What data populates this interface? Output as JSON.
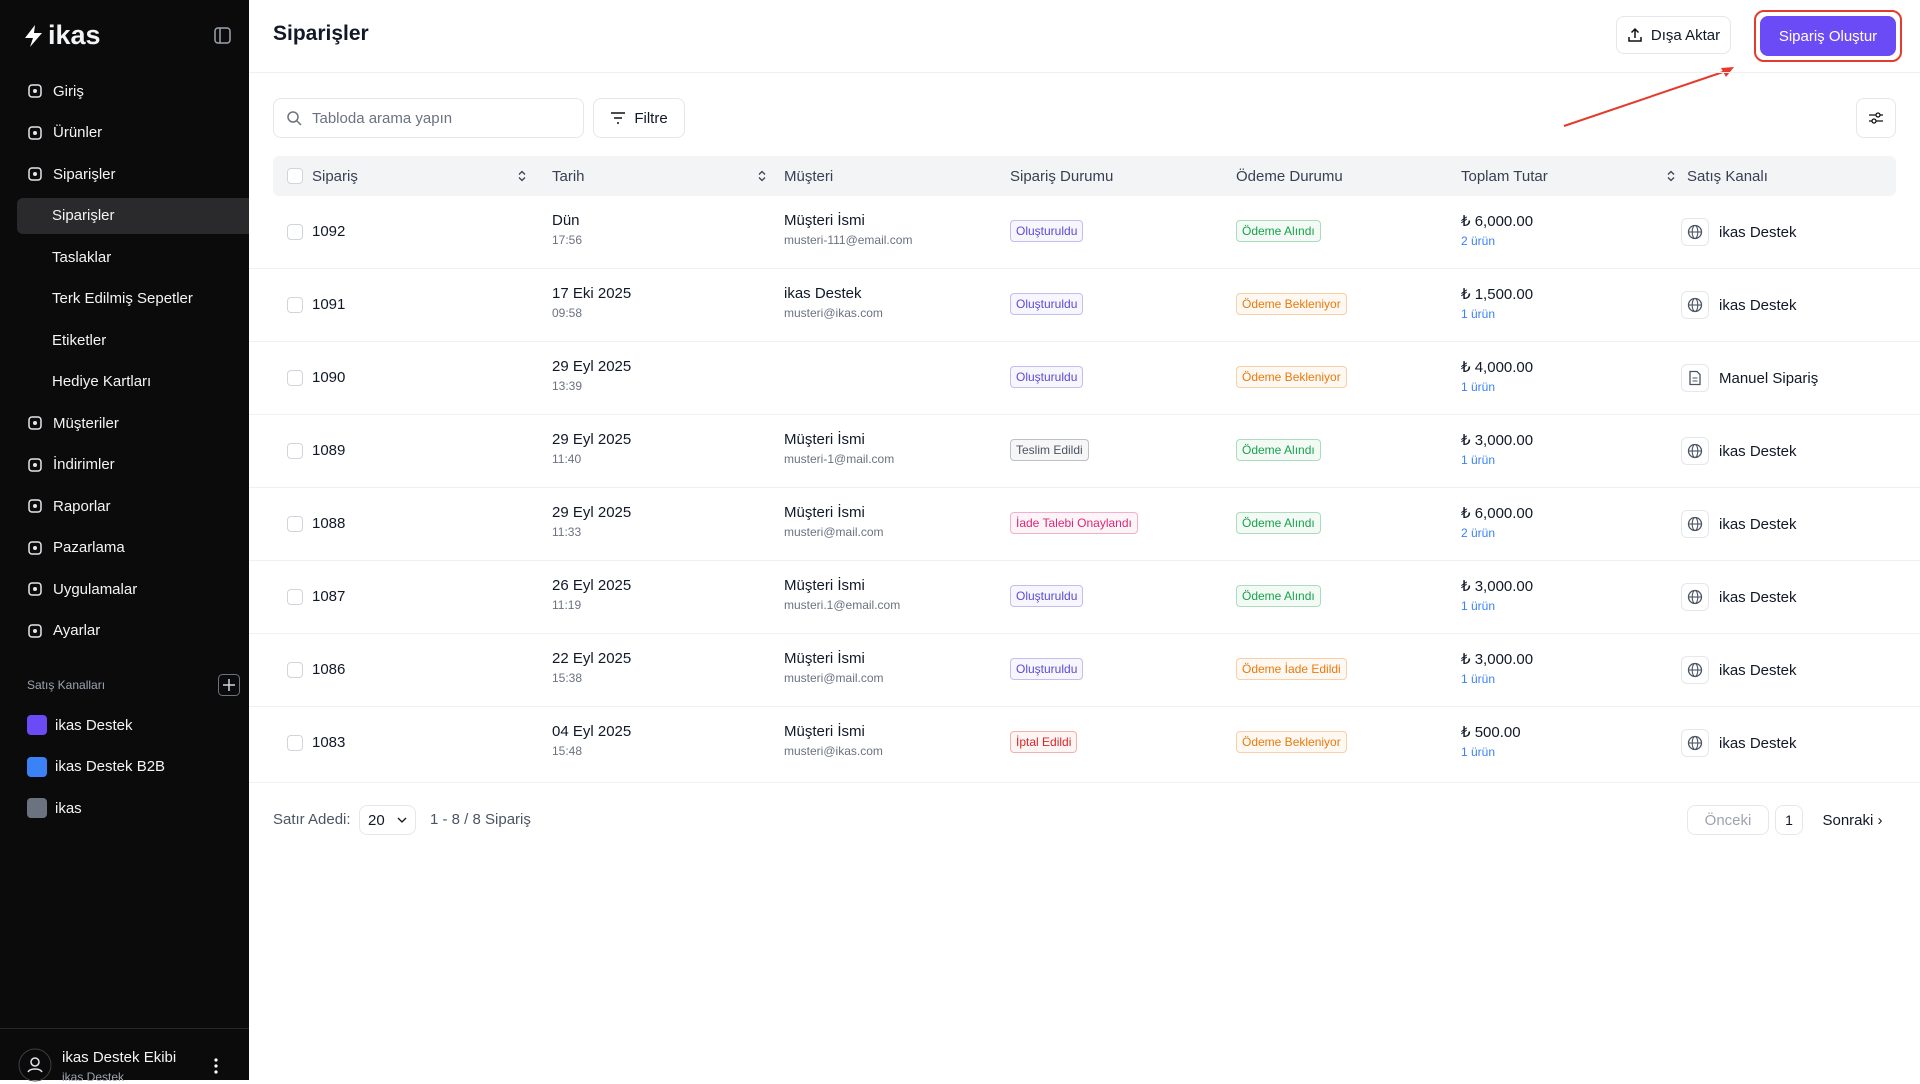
{
  "sidebar": {
    "logo": "ikas",
    "nav": [
      {
        "label": "Giriş"
      },
      {
        "label": "Ürünler"
      },
      {
        "label": "Siparişler",
        "children": [
          "Siparişler",
          "Taslaklar",
          "Terk Edilmiş Sepetler",
          "Etiketler",
          "Hediye Kartları"
        ]
      },
      {
        "label": "Müşteriler"
      },
      {
        "label": "İndirimler"
      },
      {
        "label": "Raporlar"
      },
      {
        "label": "Pazarlama"
      },
      {
        "label": "Uygulamalar"
      },
      {
        "label": "Ayarlar"
      }
    ],
    "channels_title": "Satış Kanalları",
    "channels": [
      "ikas Destek",
      "ikas Destek B2B",
      "ikas"
    ],
    "user": {
      "name": "ikas Destek Ekibi",
      "org": "ikas Destek"
    }
  },
  "header": {
    "title": "Siparişler",
    "export": "Dışa Aktar",
    "create": "Sipariş Oluştur"
  },
  "toolbar": {
    "search_placeholder": "Tabloda arama yapın",
    "filter": "Filtre"
  },
  "table": {
    "columns": [
      "Sipariş",
      "Tarih",
      "Müşteri",
      "Sipariş Durumu",
      "Ödeme Durumu",
      "Toplam Tutar",
      "Satış Kanalı"
    ],
    "rows": [
      {
        "id": "1092",
        "date": "Dün",
        "time": "17:56",
        "customer": "Müşteri İsmi",
        "email": "musteri-111@email.com",
        "status": "Oluşturuldu",
        "status_color": "#5b4bdb",
        "payment": "Ödeme Alındı",
        "payment_color": "#16a34a",
        "total": "₺ 6,000.00",
        "items": "2 ürün",
        "channel": "ikas Destek"
      },
      {
        "id": "1091",
        "date": "17 Eki 2025",
        "time": "09:58",
        "customer": "ikas Destek",
        "email": "musteri@ikas.com",
        "status": "Oluşturuldu",
        "status_color": "#5b4bdb",
        "payment": "Ödeme Bekleniyor",
        "payment_color": "#ea7a0c",
        "total": "₺ 1,500.00",
        "items": "1 ürün",
        "channel": "ikas Destek"
      },
      {
        "id": "1090",
        "date": "29 Eyl 2025",
        "time": "13:39",
        "status": "Oluşturuldu",
        "status_color": "#5b4bdb",
        "payment": "Ödeme Bekleniyor",
        "payment_color": "#ea7a0c",
        "total": "₺ 4,000.00",
        "items": "1 ürün",
        "channel": "Manuel Sipariş"
      },
      {
        "id": "1089",
        "date": "29 Eyl 2025",
        "time": "11:40",
        "customer": "Müşteri İsmi",
        "email": "musteri-1@mail.com",
        "status": "Teslim Edildi",
        "status_color": "#4b5563",
        "payment": "Ödeme Alındı",
        "payment_color": "#16a34a",
        "total": "₺ 3,000.00",
        "items": "1 ürün",
        "channel": "ikas Destek"
      },
      {
        "id": "1088",
        "date": "29 Eyl 2025",
        "time": "11:33",
        "customer": "Müşteri İsmi",
        "email": "musteri@mail.com",
        "status": "İade Talebi Onaylandı",
        "status_color": "#db2777",
        "payment": "Ödeme Alındı",
        "payment_color": "#16a34a",
        "total": "₺ 6,000.00",
        "items": "2 ürün",
        "channel": "ikas Destek"
      },
      {
        "id": "1087",
        "date": "26 Eyl 2025",
        "time": "11:19",
        "customer": "Müşteri İsmi",
        "email": "musteri.1@email.com",
        "status": "Oluşturuldu",
        "status_color": "#5b4bdb",
        "payment": "Ödeme Alındı",
        "payment_color": "#16a34a",
        "total": "₺ 3,000.00",
        "items": "1 ürün",
        "channel": "ikas Destek"
      },
      {
        "id": "1086",
        "date": "22 Eyl 2025",
        "time": "15:38",
        "customer": "Müşteri İsmi",
        "email": "musteri@mail.com",
        "status": "Oluşturuldu",
        "status_color": "#5b4bdb",
        "payment": "Ödeme İade Edildi",
        "payment_color": "#ea7a0c",
        "total": "₺ 3,000.00",
        "items": "1 ürün",
        "channel": "ikas Destek"
      },
      {
        "id": "1083",
        "date": "04 Eyl 2025",
        "time": "15:48",
        "customer": "Müşteri İsmi",
        "email": "musteri@ikas.com",
        "status": "İptal Edildi",
        "status_color": "#dc2626",
        "payment": "Ödeme Bekleniyor",
        "payment_color": "#ea7a0c",
        "total": "₺ 500.00",
        "items": "1 ürün",
        "channel": "ikas Destek"
      }
    ]
  },
  "footer": {
    "rows_label": "Satır Adedi:",
    "rows_per_page": "20",
    "range": "1 - 8 / 8 Sipariş",
    "prev": "Önceki",
    "page": "1",
    "next": "Sonraki"
  }
}
